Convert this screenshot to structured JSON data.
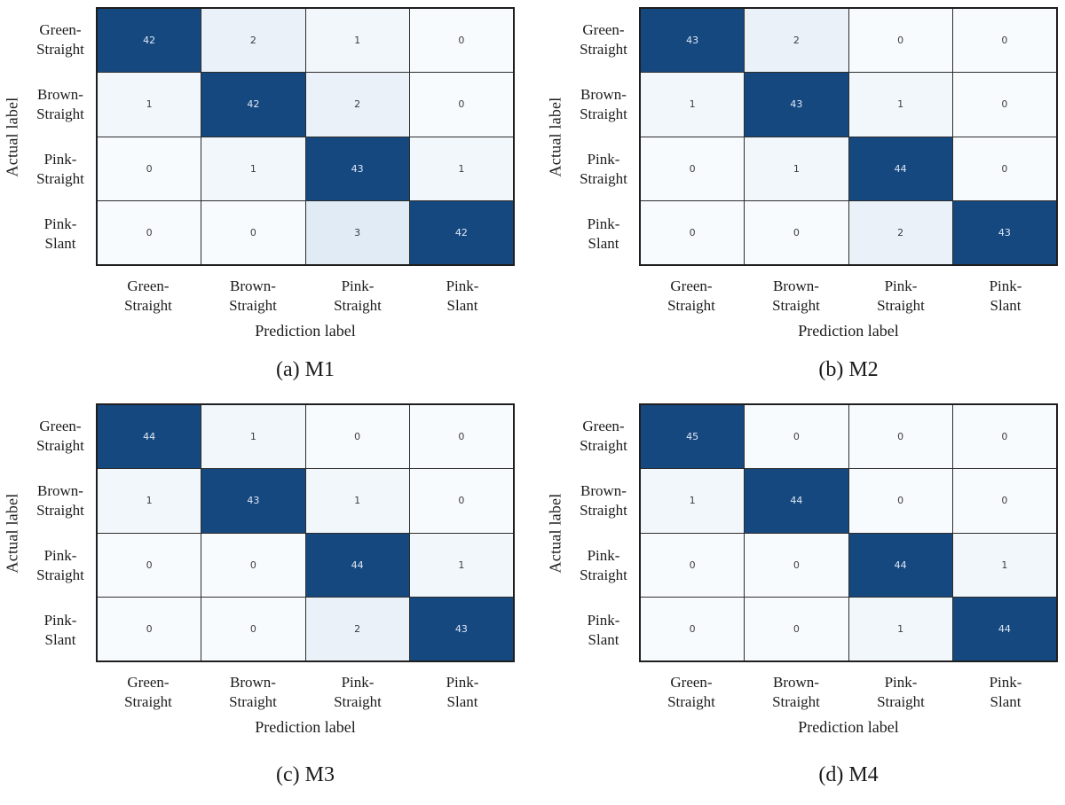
{
  "figure": {
    "background": "#ffffff"
  },
  "cell_colors": {
    "high_threshold": 40,
    "high": "#164880",
    "high_text": "#dfe8f3",
    "low": [
      "#f8fbfe",
      "#f2f7fc",
      "#eaf1f9",
      "#e1ebf6"
    ],
    "low_text": "#3d3d3d",
    "grid_line": "#2d2d2d",
    "outer_border": "#1e1e1e"
  },
  "chart_data": [
    {
      "type": "heatmap",
      "name": "M1",
      "caption": "(a) M1",
      "xlabel": "Prediction label",
      "ylabel": "Actual label",
      "x_categories": [
        "Green-\nStraight",
        "Brown-\nStraight",
        "Pink-\nStraight",
        "Pink-\nSlant"
      ],
      "y_categories": [
        "Green-\nStraight",
        "Brown-\nStraight",
        "Pink-\nStraight",
        "Pink-\nSlant"
      ],
      "matrix": [
        [
          42,
          2,
          1,
          0
        ],
        [
          1,
          42,
          2,
          0
        ],
        [
          0,
          1,
          43,
          1
        ],
        [
          0,
          0,
          3,
          42
        ]
      ]
    },
    {
      "type": "heatmap",
      "name": "M2",
      "caption": "(b) M2",
      "xlabel": "Prediction label",
      "ylabel": "Actual label",
      "x_categories": [
        "Green-\nStraight",
        "Brown-\nStraight",
        "Pink-\nStraight",
        "Pink-\nSlant"
      ],
      "y_categories": [
        "Green-\nStraight",
        "Brown-\nStraight",
        "Pink-\nStraight",
        "Pink-\nSlant"
      ],
      "matrix": [
        [
          43,
          2,
          0,
          0
        ],
        [
          1,
          43,
          1,
          0
        ],
        [
          0,
          1,
          44,
          0
        ],
        [
          0,
          0,
          2,
          43
        ]
      ]
    },
    {
      "type": "heatmap",
      "name": "M3",
      "caption": "(c) M3",
      "xlabel": "Prediction label",
      "ylabel": "Actual label",
      "x_categories": [
        "Green-\nStraight",
        "Brown-\nStraight",
        "Pink-\nStraight",
        "Pink-\nSlant"
      ],
      "y_categories": [
        "Green-\nStraight",
        "Brown-\nStraight",
        "Pink-\nStraight",
        "Pink-\nSlant"
      ],
      "matrix": [
        [
          44,
          1,
          0,
          0
        ],
        [
          1,
          43,
          1,
          0
        ],
        [
          0,
          0,
          44,
          1
        ],
        [
          0,
          0,
          2,
          43
        ]
      ]
    },
    {
      "type": "heatmap",
      "name": "M4",
      "caption": "(d) M4",
      "xlabel": "Prediction label",
      "ylabel": "Actual label",
      "x_categories": [
        "Green-\nStraight",
        "Brown-\nStraight",
        "Pink-\nStraight",
        "Pink-\nSlant"
      ],
      "y_categories": [
        "Green-\nStraight",
        "Brown-\nStraight",
        "Pink-\nStraight",
        "Pink-\nSlant"
      ],
      "matrix": [
        [
          45,
          0,
          0,
          0
        ],
        [
          1,
          44,
          0,
          0
        ],
        [
          0,
          0,
          44,
          1
        ],
        [
          0,
          0,
          1,
          44
        ]
      ]
    }
  ]
}
